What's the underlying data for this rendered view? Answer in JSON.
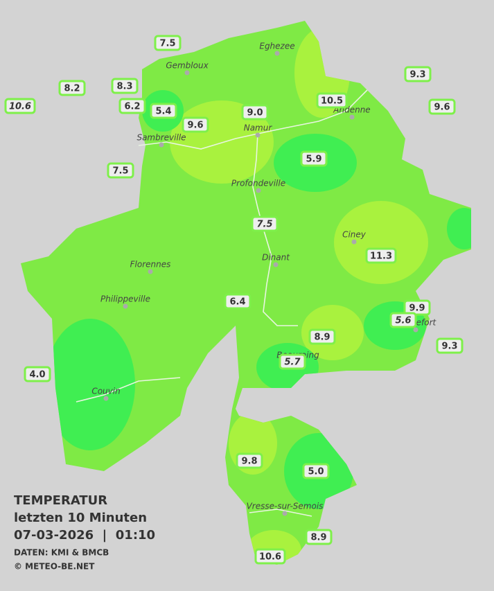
{
  "title": {
    "heading": "TEMPERATUR",
    "period": "letzten 10 Minuten",
    "datetime": "07-03-2026  |  01:10",
    "source": "DATEN: KMI & BMCB",
    "copyright": "© METEO-BE.NET"
  },
  "cities": [
    "Eghezee",
    "Gembloux",
    "Andenne",
    "Namur",
    "Sambreville",
    "Profondeville",
    "Ciney",
    "Dinant",
    "Florennes",
    "Philippeville",
    "Rochefort",
    "Beauraing",
    "Couvin",
    "Vresse-sur-Semois"
  ],
  "stations": [
    {
      "value": "7.5"
    },
    {
      "value": "8.2"
    },
    {
      "value": "8.3"
    },
    {
      "value": "10.6",
      "italic": true
    },
    {
      "value": "6.2"
    },
    {
      "value": "5.4"
    },
    {
      "value": "9.6"
    },
    {
      "value": "9.0"
    },
    {
      "value": "10.5"
    },
    {
      "value": "9.3"
    },
    {
      "value": "9.6"
    },
    {
      "value": "7.5"
    },
    {
      "value": "5.9"
    },
    {
      "value": "7.5",
      "italic": true
    },
    {
      "value": "11.3"
    },
    {
      "value": "6.4"
    },
    {
      "value": "9.9"
    },
    {
      "value": "5.6",
      "italic": true
    },
    {
      "value": "9.3"
    },
    {
      "value": "8.9"
    },
    {
      "value": "5.7",
      "italic": true
    },
    {
      "value": "4.0"
    },
    {
      "value": "9.8"
    },
    {
      "value": "5.0"
    },
    {
      "value": "8.9"
    },
    {
      "value": "10.6"
    }
  ]
}
